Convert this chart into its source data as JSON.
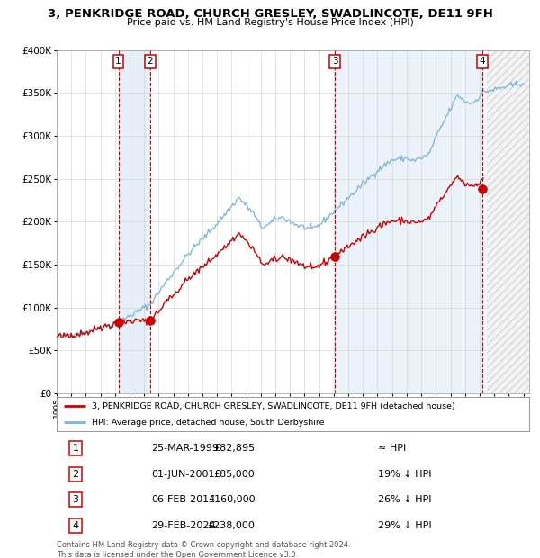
{
  "title": "3, PENKRIDGE ROAD, CHURCH GRESLEY, SWADLINCOTE, DE11 9FH",
  "subtitle": "Price paid vs. HM Land Registry's House Price Index (HPI)",
  "hpi_color": "#7ab5d8",
  "price_color": "#cc0000",
  "grid_color": "#cccccc",
  "background_color": "#ffffff",
  "legend_label_price": "3, PENKRIDGE ROAD, CHURCH GRESLEY, SWADLINCOTE, DE11 9FH (detached house)",
  "legend_label_hpi": "HPI: Average price, detached house, South Derbyshire",
  "sales": [
    {
      "num": 1,
      "year": 1999.23,
      "price": 82895,
      "note": "≈ HPI"
    },
    {
      "num": 2,
      "year": 2001.42,
      "price": 85000,
      "note": "19% ↓ HPI"
    },
    {
      "num": 3,
      "year": 2014.09,
      "price": 160000,
      "note": "26% ↓ HPI"
    },
    {
      "num": 4,
      "year": 2024.17,
      "price": 238000,
      "note": "29% ↓ HPI"
    }
  ],
  "table_rows": [
    [
      "1",
      "25-MAR-1999",
      "£82,895",
      "≈ HPI"
    ],
    [
      "2",
      "01-JUN-2001",
      "£85,000",
      "19% ↓ HPI"
    ],
    [
      "3",
      "06-FEB-2014",
      "£160,000",
      "26% ↓ HPI"
    ],
    [
      "4",
      "29-FEB-2024",
      "£238,000",
      "29% ↓ HPI"
    ]
  ],
  "footer": "Contains HM Land Registry data © Crown copyright and database right 2024.\nThis data is licensed under the Open Government Licence v3.0.",
  "future_start": 2024.5,
  "xlim": [
    1995,
    2027.4
  ],
  "ylim": [
    0,
    400000
  ]
}
